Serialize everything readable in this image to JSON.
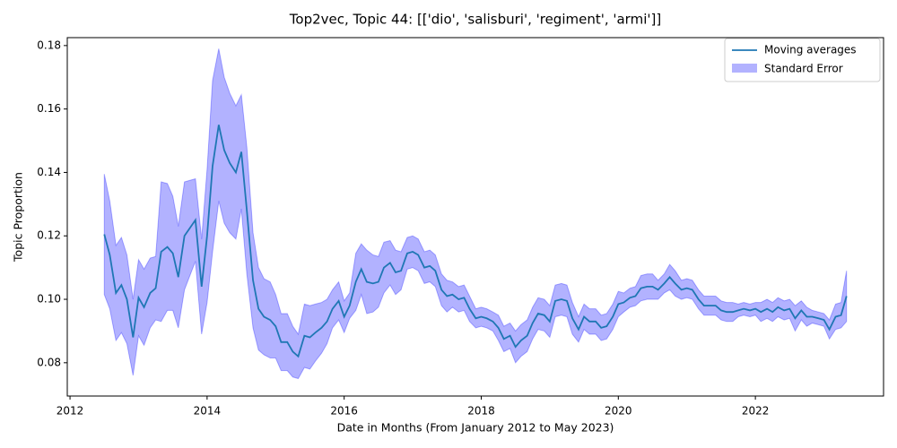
{
  "chart_data": {
    "type": "line",
    "title": "Top2vec, Topic 44: [['dio', 'salisburi', 'regiment', 'armi']]",
    "x_label": "Date in Months (From January 2012 to May 2023)",
    "y_label": "Topic Proportion",
    "legend": "upper right",
    "xlim": [
      2011.96,
      2023.87
    ],
    "ylim": [
      0.0695,
      0.1825
    ],
    "xticks": [
      2012,
      2014,
      2016,
      2018,
      2020,
      2022
    ],
    "yticks": [
      0.08,
      {
        "value": 0.1,
        "label": "0.10"
      },
      0.12,
      0.14,
      0.16,
      0.18
    ],
    "x": [
      2012.5,
      2012.58,
      2012.67,
      2012.75,
      2012.83,
      2012.92,
      2013.0,
      2013.08,
      2013.17,
      2013.25,
      2013.33,
      2013.42,
      2013.5,
      2013.58,
      2013.67,
      2013.75,
      2013.83,
      2013.92,
      2014.0,
      2014.08,
      2014.17,
      2014.25,
      2014.33,
      2014.42,
      2014.5,
      2014.58,
      2014.67,
      2014.75,
      2014.83,
      2014.92,
      2015.0,
      2015.08,
      2015.17,
      2015.25,
      2015.33,
      2015.42,
      2015.5,
      2015.58,
      2015.67,
      2015.75,
      2015.83,
      2015.92,
      2016.0,
      2016.08,
      2016.17,
      2016.25,
      2016.33,
      2016.42,
      2016.5,
      2016.58,
      2016.67,
      2016.75,
      2016.83,
      2016.92,
      2017.0,
      2017.08,
      2017.17,
      2017.25,
      2017.33,
      2017.42,
      2017.5,
      2017.58,
      2017.67,
      2017.75,
      2017.83,
      2017.92,
      2018.0,
      2018.08,
      2018.17,
      2018.25,
      2018.33,
      2018.42,
      2018.5,
      2018.58,
      2018.67,
      2018.75,
      2018.83,
      2018.92,
      2019.0,
      2019.08,
      2019.17,
      2019.25,
      2019.33,
      2019.42,
      2019.5,
      2019.58,
      2019.67,
      2019.75,
      2019.83,
      2019.92,
      2020.0,
      2020.08,
      2020.17,
      2020.25,
      2020.33,
      2020.42,
      2020.5,
      2020.58,
      2020.67,
      2020.75,
      2020.83,
      2020.92,
      2021.0,
      2021.08,
      2021.17,
      2021.25,
      2021.33,
      2021.42,
      2021.5,
      2021.58,
      2021.67,
      2021.75,
      2021.83,
      2021.92,
      2022.0,
      2022.08,
      2022.17,
      2022.25,
      2022.33,
      2022.42,
      2022.5,
      2022.58,
      2022.67,
      2022.75,
      2022.83,
      2022.92,
      2023.0,
      2023.08,
      2023.17,
      2023.25,
      2023.33
    ],
    "series": [
      {
        "name": "Moving averages",
        "color": "#1f77b4",
        "values": [
          0.1205,
          0.114,
          0.102,
          0.1045,
          0.1,
          0.088,
          0.1005,
          0.0975,
          0.102,
          0.1035,
          0.115,
          0.1165,
          0.1145,
          0.107,
          0.12,
          0.1225,
          0.125,
          0.104,
          0.12,
          0.142,
          0.155,
          0.147,
          0.143,
          0.14,
          0.1465,
          0.128,
          0.106,
          0.097,
          0.0945,
          0.0935,
          0.0915,
          0.0865,
          0.0865,
          0.0835,
          0.082,
          0.0885,
          0.088,
          0.0895,
          0.091,
          0.093,
          0.097,
          0.0995,
          0.0945,
          0.098,
          0.1055,
          0.1095,
          0.1055,
          0.105,
          0.1055,
          0.11,
          0.1115,
          0.1085,
          0.109,
          0.1145,
          0.115,
          0.114,
          0.11,
          0.1105,
          0.109,
          0.103,
          0.101,
          0.1015,
          0.1,
          0.1005,
          0.097,
          0.094,
          0.0945,
          0.094,
          0.093,
          0.091,
          0.0875,
          0.0885,
          0.085,
          0.087,
          0.0885,
          0.0925,
          0.0955,
          0.095,
          0.093,
          0.0995,
          0.1,
          0.0995,
          0.094,
          0.0905,
          0.0945,
          0.093,
          0.093,
          0.091,
          0.0915,
          0.0945,
          0.0985,
          0.099,
          0.1005,
          0.101,
          0.1035,
          0.104,
          0.104,
          0.103,
          0.105,
          0.107,
          0.105,
          0.103,
          0.1035,
          0.103,
          0.1,
          0.098,
          0.098,
          0.098,
          0.0965,
          0.096,
          0.096,
          0.0965,
          0.097,
          0.0965,
          0.097,
          0.096,
          0.097,
          0.096,
          0.0975,
          0.0965,
          0.097,
          0.094,
          0.0965,
          0.0945,
          0.0945,
          0.094,
          0.0935,
          0.0905,
          0.0945,
          0.095,
          0.101
        ]
      },
      {
        "name": "Standard Error",
        "color": "#0000ff",
        "values": [
          0.019,
          0.017,
          0.015,
          0.015,
          0.014,
          0.012,
          0.012,
          0.012,
          0.011,
          0.01,
          0.022,
          0.02,
          0.018,
          0.016,
          0.017,
          0.015,
          0.013,
          0.015,
          0.021,
          0.027,
          0.024,
          0.023,
          0.022,
          0.021,
          0.018,
          0.02,
          0.015,
          0.013,
          0.012,
          0.012,
          0.01,
          0.009,
          0.009,
          0.008,
          0.007,
          0.01,
          0.01,
          0.009,
          0.008,
          0.007,
          0.006,
          0.006,
          0.005,
          0.004,
          0.009,
          0.008,
          0.01,
          0.009,
          0.008,
          0.008,
          0.007,
          0.007,
          0.006,
          0.005,
          0.005,
          0.005,
          0.005,
          0.005,
          0.005,
          0.005,
          0.005,
          0.004,
          0.004,
          0.004,
          0.004,
          0.003,
          0.003,
          0.003,
          0.003,
          0.004,
          0.004,
          0.004,
          0.005,
          0.005,
          0.005,
          0.005,
          0.005,
          0.005,
          0.005,
          0.005,
          0.005,
          0.005,
          0.005,
          0.004,
          0.004,
          0.004,
          0.004,
          0.004,
          0.004,
          0.004,
          0.004,
          0.003,
          0.003,
          0.003,
          0.004,
          0.004,
          0.004,
          0.003,
          0.003,
          0.004,
          0.004,
          0.003,
          0.003,
          0.003,
          0.003,
          0.003,
          0.003,
          0.003,
          0.003,
          0.003,
          0.003,
          0.002,
          0.002,
          0.002,
          0.002,
          0.003,
          0.003,
          0.003,
          0.003,
          0.003,
          0.003,
          0.004,
          0.003,
          0.003,
          0.002,
          0.002,
          0.002,
          0.003,
          0.004,
          0.004,
          0.008
        ]
      }
    ]
  }
}
